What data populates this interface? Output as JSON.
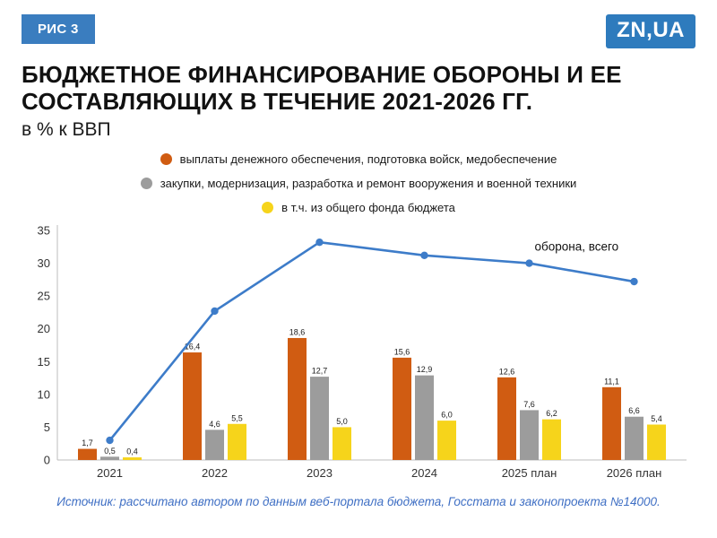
{
  "header": {
    "badge": "РИС 3",
    "logo": "ZN,UA",
    "title": "Бюджетное финансирование обороны и ее составляющих в течение 2021-2026 гг.",
    "subtitle": "в % к ВВП"
  },
  "footer": {
    "source": "Источник: рассчитано автором по данным веб-портала бюджета, Госстата и законопроекта №14000."
  },
  "colors": {
    "badge_bg": "#3a7dbf",
    "logo_bg": "#2e7bbd",
    "source_text": "#3f6fc4",
    "axis_line": "#bdbdbd",
    "tick_text": "#333333"
  },
  "chart_data": {
    "type": "bar+line",
    "title": "Бюджетное финансирование обороны и ее составляющих в течение 2021-2026 гг., в % к ВВП",
    "categories": [
      "2021",
      "2022",
      "2023",
      "2024",
      "2025 план",
      "2026 план"
    ],
    "series": [
      {
        "type": "bar",
        "name": "выплаты денежного обеспечения, подготовка войск, медобеспечение",
        "color": "#d05c12",
        "values": [
          1.7,
          16.4,
          18.6,
          15.6,
          12.6,
          11.1
        ],
        "labels": [
          "1,7",
          "16,4",
          "18,6",
          "15,6",
          "12,6",
          "11,1"
        ]
      },
      {
        "type": "bar",
        "name": "закупки, модернизация, разработка и ремонт вооружения и военной техники",
        "color": "#9c9c9c",
        "values": [
          0.5,
          4.6,
          12.7,
          12.9,
          7.6,
          6.6
        ],
        "labels": [
          "0,5",
          "4,6",
          "12,7",
          "12,9",
          "7,6",
          "6,6"
        ]
      },
      {
        "type": "bar",
        "name": "в т.ч. из общего фонда бюджета",
        "color": "#f6d41b",
        "values": [
          0.4,
          5.5,
          5.0,
          6.0,
          6.2,
          5.4
        ],
        "labels": [
          "0,4",
          "5,5",
          "5,0",
          "6,0",
          "6,2",
          "5,4"
        ]
      },
      {
        "type": "line",
        "name": "оборона, всего",
        "color": "#3d7cc9",
        "values": [
          3.0,
          22.7,
          33.2,
          31.2,
          30.0,
          27.2
        ]
      }
    ],
    "line_label": "оборона, всего",
    "ylim": [
      0,
      35
    ],
    "yticks": [
      0,
      5,
      10,
      15,
      20,
      25,
      30,
      35
    ],
    "grid": false,
    "legend_position": "top-center"
  }
}
